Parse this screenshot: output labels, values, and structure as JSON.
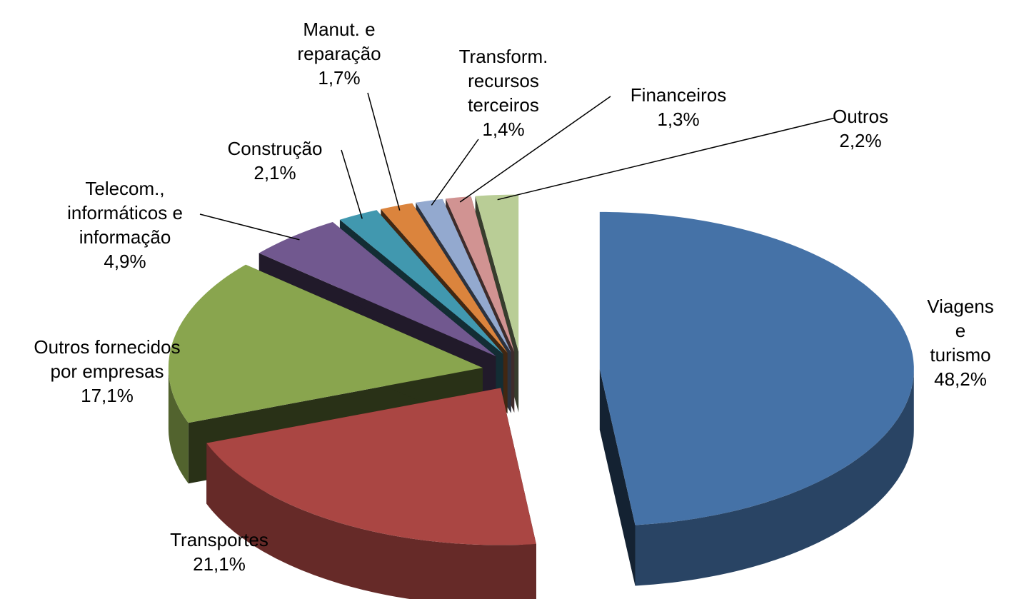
{
  "chart_data": {
    "type": "pie",
    "categories": [
      "Viagens e\nturismo",
      "Transportes",
      "Outros fornecidos\npor empresas",
      "Telecom.,\ninformáticos e\ninformação",
      "Construção",
      "Manut. e\nreparação",
      "Transform.\nrecursos\nterceiros",
      "Financeiros",
      "Outros"
    ],
    "values": [
      48.2,
      21.1,
      17.1,
      4.9,
      2.1,
      1.7,
      1.4,
      1.3,
      2.2
    ],
    "value_labels": [
      "48,2%",
      "21,1%",
      "17,1%",
      "4,9%",
      "2,1%",
      "1,7%",
      "1,4%",
      "1,3%",
      "2,2%"
    ],
    "colors": [
      "#4572a7",
      "#aa4643",
      "#89a54e",
      "#71588f",
      "#4198af",
      "#db843d",
      "#93a9cf",
      "#d19392",
      "#b9cd96"
    ]
  }
}
